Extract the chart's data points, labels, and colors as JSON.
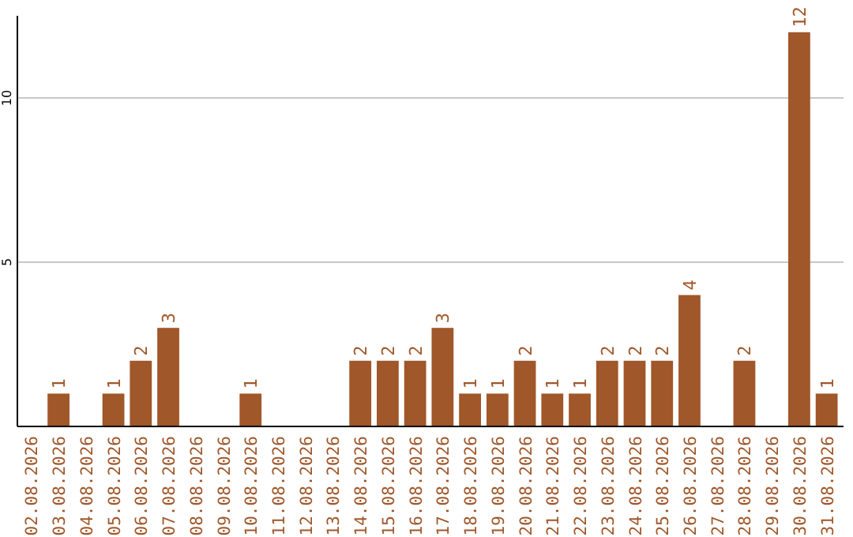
{
  "chart_data": {
    "type": "bar",
    "categories": [
      "02.08.2026",
      "03.08.2026",
      "04.08.2026",
      "05.08.2026",
      "06.08.2026",
      "07.08.2026",
      "08.08.2026",
      "09.08.2026",
      "10.08.2026",
      "11.08.2026",
      "12.08.2026",
      "13.08.2026",
      "14.08.2026",
      "15.08.2026",
      "16.08.2026",
      "17.08.2026",
      "18.08.2026",
      "19.08.2026",
      "20.08.2026",
      "21.08.2026",
      "22.08.2026",
      "23.08.2026",
      "24.08.2026",
      "25.08.2026",
      "26.08.2026",
      "27.08.2026",
      "28.08.2026",
      "29.08.2026",
      "30.08.2026",
      "31.08.2026"
    ],
    "values": [
      0,
      1,
      0,
      1,
      2,
      3,
      0,
      0,
      1,
      0,
      0,
      0,
      2,
      2,
      2,
      3,
      1,
      1,
      2,
      1,
      1,
      2,
      2,
      2,
      4,
      0,
      2,
      0,
      12,
      1
    ],
    "value_labels": [
      null,
      "1",
      null,
      "1",
      "2",
      "3",
      null,
      null,
      "1",
      null,
      null,
      null,
      "2",
      "2",
      "2",
      "3",
      "1",
      "1",
      "2",
      "1",
      "1",
      "2",
      "2",
      "2",
      "4",
      null,
      "2",
      null,
      "12",
      "1"
    ],
    "color": "#a0572a",
    "ylim": [
      0,
      12.5
    ],
    "yticks": [
      {
        "value": 0,
        "label": null
      },
      5,
      10
    ],
    "grid": "y"
  }
}
